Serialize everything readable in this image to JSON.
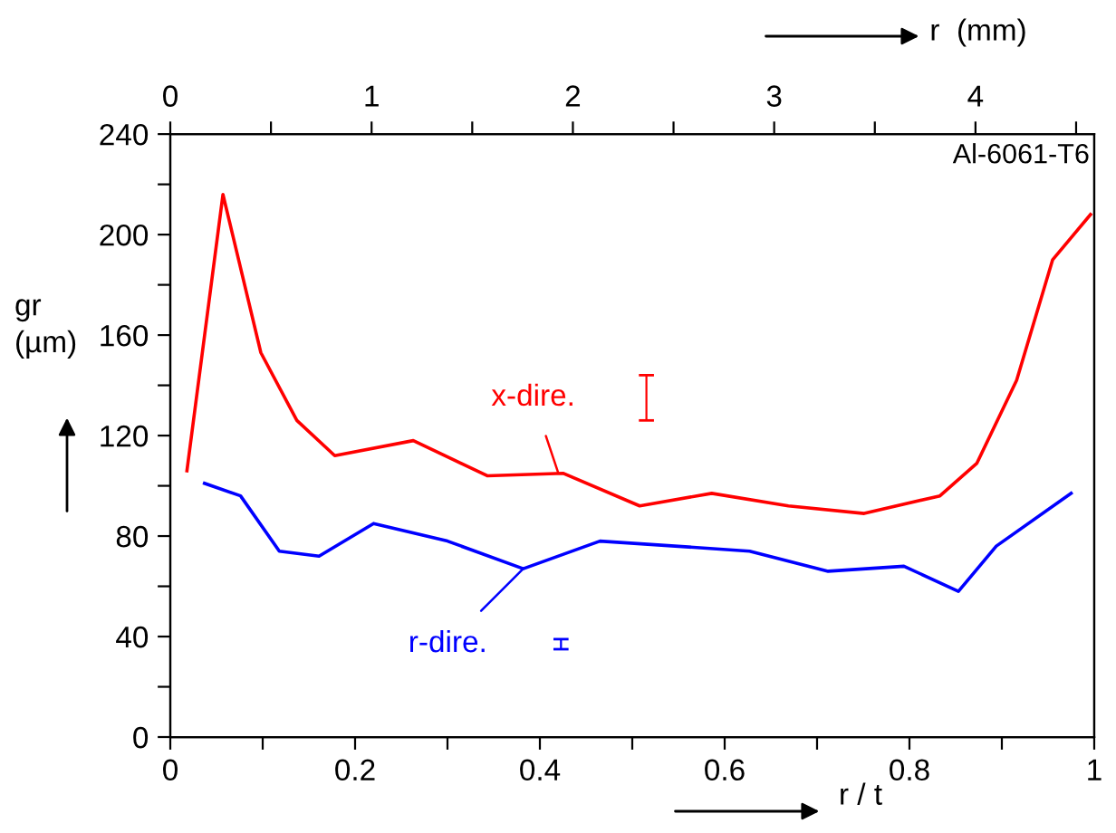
{
  "chart_data": {
    "type": "line",
    "xlabel": "r / t",
    "ylabel": "gr\n(µm)",
    "x2label": "r  (mm)",
    "annotations": [
      {
        "text": "x-dire.",
        "x": 0.42,
        "y": 105
      },
      {
        "text": "r-dire.",
        "x": 0.382,
        "y": 67
      },
      "Al-6061-T6"
    ],
    "series": [
      {
        "color": "#ff0000",
        "x": [
          0.018,
          0.057,
          0.098,
          0.137,
          0.178,
          0.263,
          0.343,
          0.425,
          0.508,
          0.586,
          0.669,
          0.751,
          0.833,
          0.873,
          0.916,
          0.955,
          0.996
        ],
        "values": [
          106,
          216,
          153,
          126,
          112,
          118,
          104,
          105,
          92,
          97,
          92,
          89,
          96,
          109,
          142,
          190,
          208
        ]
      },
      {
        "color": "#0000ff",
        "x": [
          0.037,
          0.076,
          0.118,
          0.161,
          0.22,
          0.3,
          0.382,
          0.465,
          0.627,
          0.712,
          0.794,
          0.853,
          0.894,
          0.975
        ],
        "values": [
          101,
          96,
          74,
          72,
          85,
          78,
          67,
          78,
          74,
          66,
          68,
          58,
          76,
          97
        ]
      }
    ],
    "xlim": [
      0,
      1
    ],
    "xticks": [
      0,
      {
        "value": 0.1,
        "label": null
      },
      0.2,
      {
        "value": 0.3,
        "label": null
      },
      0.4,
      {
        "value": 0.5,
        "label": null
      },
      0.6,
      {
        "value": 0.7,
        "label": null
      },
      0.8,
      {
        "value": 0.9,
        "label": null
      },
      1
    ],
    "ylim": [
      0,
      240
    ],
    "yticks": [
      0,
      {
        "value": 20,
        "label": null
      },
      40,
      {
        "value": 60,
        "label": null
      },
      80,
      {
        "value": 100,
        "label": null
      },
      120,
      {
        "value": 140,
        "label": null
      },
      160,
      {
        "value": 180,
        "label": null
      },
      200,
      {
        "value": 220,
        "label": null
      },
      240
    ],
    "x2lim": [
      0,
      4.59
    ],
    "x2ticks": [
      0,
      {
        "value": 0.5,
        "label": null
      },
      1,
      {
        "value": 1.5,
        "label": null
      },
      2,
      {
        "value": 2.5,
        "label": null
      },
      3,
      {
        "value": 3.5,
        "label": null
      },
      4,
      {
        "value": 4.5,
        "label": null
      }
    ],
    "grid": false,
    "legend": false,
    "marker": "none",
    "line_style": "solid"
  }
}
